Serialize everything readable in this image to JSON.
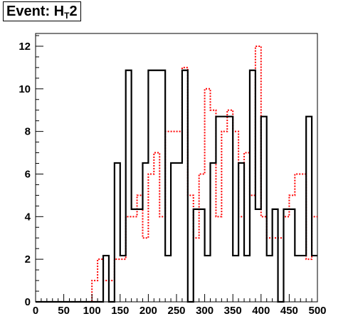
{
  "title": {
    "main": "Event: H",
    "sub": "T",
    "suffix": "2"
  },
  "colors": {
    "series_black": "#000000",
    "series_red": "#ff0000",
    "frame": "#000000"
  },
  "chart_data": {
    "type": "histogram",
    "title": "Event: HT2",
    "xlabel": "",
    "ylabel": "",
    "xlim": [
      0,
      500
    ],
    "ylim": [
      0,
      12.6
    ],
    "grid": false,
    "legend": "none",
    "x_ticks": [
      0,
      50,
      100,
      150,
      200,
      250,
      300,
      350,
      400,
      450,
      500
    ],
    "y_ticks": [
      0,
      2,
      4,
      6,
      8,
      10,
      12
    ],
    "bin_edges": [
      0,
      10,
      20,
      30,
      40,
      50,
      60,
      70,
      80,
      90,
      100,
      110,
      120,
      130,
      140,
      150,
      160,
      170,
      180,
      190,
      200,
      210,
      220,
      230,
      240,
      250,
      260,
      270,
      280,
      290,
      300,
      310,
      320,
      330,
      340,
      350,
      360,
      370,
      380,
      390,
      400,
      410,
      420,
      430,
      440,
      450,
      460,
      470,
      480,
      490,
      500
    ],
    "series": [
      {
        "style": "solid black",
        "values": [
          0,
          0,
          0,
          0,
          0,
          0,
          0,
          0,
          0,
          0,
          0,
          0,
          2.17,
          0,
          6.52,
          2.17,
          10.87,
          4.35,
          4.35,
          6.52,
          10.87,
          10.87,
          10.87,
          2.17,
          6.52,
          6.52,
          10.87,
          0,
          4.35,
          4.35,
          2.17,
          6.52,
          8.7,
          8.7,
          8.7,
          2.17,
          6.52,
          2.17,
          10.87,
          4.35,
          8.7,
          2.17,
          4.35,
          0,
          4.35,
          4.35,
          2.17,
          2.17,
          8.7,
          2.17
        ]
      },
      {
        "style": "dotted red",
        "values": [
          0,
          0,
          0,
          0,
          0,
          0,
          0,
          0,
          0,
          0,
          1,
          2,
          1,
          1,
          2,
          2,
          4,
          4,
          5,
          3,
          6,
          7,
          4,
          8,
          8,
          8,
          11,
          5,
          3,
          6,
          10,
          9,
          4,
          8,
          9,
          8,
          4,
          7,
          5,
          12,
          4,
          3,
          3,
          3,
          4,
          5,
          6,
          6,
          2,
          4
        ]
      }
    ]
  }
}
